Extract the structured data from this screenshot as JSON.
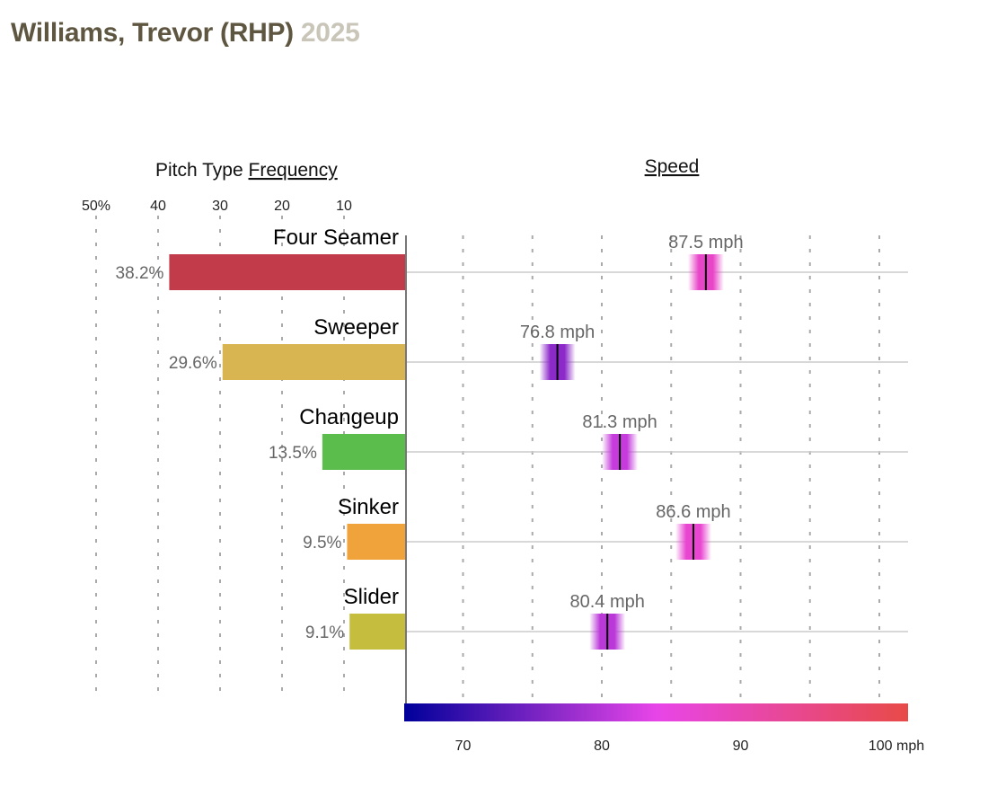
{
  "header": {
    "player": "Williams, Trevor (RHP)",
    "year": "2025"
  },
  "chart_data": [
    {
      "type": "bar",
      "title_prefix": "Pitch Type ",
      "title_link": "Frequency",
      "categories": [
        "Four Seamer",
        "Sweeper",
        "Changeup",
        "Sinker",
        "Slider"
      ],
      "values": [
        38.2,
        29.6,
        13.5,
        9.5,
        9.1
      ],
      "value_labels": [
        "38.2%",
        "29.6%",
        "13.5%",
        "9.5%",
        "9.1%"
      ],
      "colors": [
        "#c13b4b",
        "#d8b551",
        "#5bbd4c",
        "#f0a23b",
        "#c4bd3e"
      ],
      "xlim": [
        0,
        50
      ],
      "ticks": [
        50,
        40,
        30,
        20,
        10
      ],
      "tick_labels": [
        "50%",
        "40",
        "30",
        "20",
        "10"
      ],
      "orientation": "horizontal-reversed",
      "grid": true
    },
    {
      "type": "scatter",
      "title": "Speed",
      "categories": [
        "Four Seamer",
        "Sweeper",
        "Changeup",
        "Sinker",
        "Slider"
      ],
      "values": [
        87.5,
        76.8,
        81.3,
        86.6,
        80.4
      ],
      "value_labels": [
        "87.5 mph",
        "76.8 mph",
        "81.3 mph",
        "86.6 mph",
        "80.4 mph"
      ],
      "xlim": [
        65.9,
        102
      ],
      "ticks": [
        70,
        80,
        90,
        100
      ],
      "tick_labels": [
        "70",
        "80",
        "90",
        "100 mph"
      ],
      "grid_step": 5,
      "colorscale": [
        [
          65.9,
          "#00009a"
        ],
        [
          84,
          "#e845e8"
        ],
        [
          102,
          "#e84a48"
        ]
      ]
    }
  ]
}
